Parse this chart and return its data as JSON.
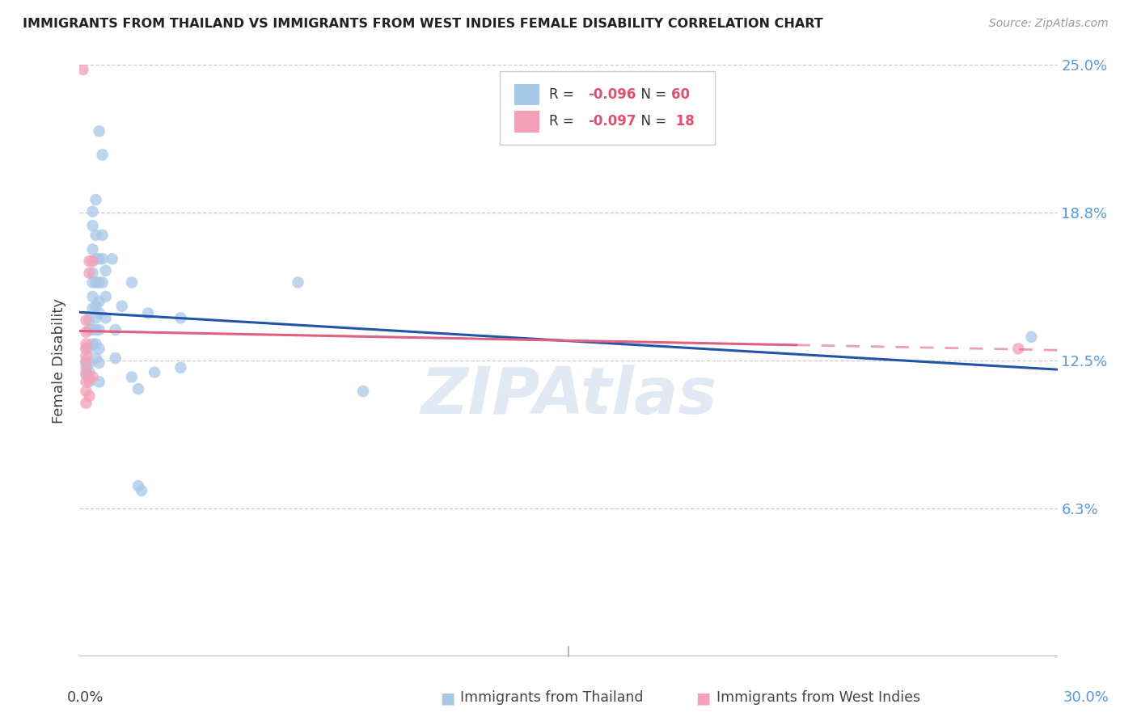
{
  "title": "IMMIGRANTS FROM THAILAND VS IMMIGRANTS FROM WEST INDIES FEMALE DISABILITY CORRELATION CHART",
  "source": "Source: ZipAtlas.com",
  "ylabel": "Female Disability",
  "xlim": [
    0.0,
    0.3
  ],
  "ylim": [
    0.0,
    0.25
  ],
  "yticks": [
    0.0,
    0.0625,
    0.125,
    0.1875,
    0.25
  ],
  "ytick_labels": [
    "",
    "6.3%",
    "12.5%",
    "18.8%",
    "25.0%"
  ],
  "thailand_color": "#a8c8e8",
  "west_indies_color": "#f4a0b8",
  "trendline_thailand_color": "#2255aa",
  "trendline_west_indies_color": "#e06080",
  "watermark": "ZIPAtlas",
  "thailand_points": [
    [
      0.002,
      0.13
    ],
    [
      0.002,
      0.125
    ],
    [
      0.002,
      0.122
    ],
    [
      0.002,
      0.119
    ],
    [
      0.003,
      0.142
    ],
    [
      0.003,
      0.138
    ],
    [
      0.003,
      0.13
    ],
    [
      0.003,
      0.124
    ],
    [
      0.003,
      0.12
    ],
    [
      0.003,
      0.116
    ],
    [
      0.004,
      0.188
    ],
    [
      0.004,
      0.182
    ],
    [
      0.004,
      0.172
    ],
    [
      0.004,
      0.162
    ],
    [
      0.004,
      0.158
    ],
    [
      0.004,
      0.152
    ],
    [
      0.004,
      0.147
    ],
    [
      0.004,
      0.138
    ],
    [
      0.004,
      0.132
    ],
    [
      0.005,
      0.193
    ],
    [
      0.005,
      0.178
    ],
    [
      0.005,
      0.168
    ],
    [
      0.005,
      0.158
    ],
    [
      0.005,
      0.148
    ],
    [
      0.005,
      0.143
    ],
    [
      0.005,
      0.138
    ],
    [
      0.005,
      0.132
    ],
    [
      0.005,
      0.126
    ],
    [
      0.006,
      0.222
    ],
    [
      0.006,
      0.168
    ],
    [
      0.006,
      0.158
    ],
    [
      0.006,
      0.15
    ],
    [
      0.006,
      0.145
    ],
    [
      0.006,
      0.138
    ],
    [
      0.006,
      0.13
    ],
    [
      0.006,
      0.124
    ],
    [
      0.006,
      0.116
    ],
    [
      0.007,
      0.212
    ],
    [
      0.007,
      0.178
    ],
    [
      0.007,
      0.168
    ],
    [
      0.007,
      0.158
    ],
    [
      0.008,
      0.163
    ],
    [
      0.008,
      0.152
    ],
    [
      0.008,
      0.143
    ],
    [
      0.01,
      0.168
    ],
    [
      0.011,
      0.138
    ],
    [
      0.011,
      0.126
    ],
    [
      0.013,
      0.148
    ],
    [
      0.016,
      0.158
    ],
    [
      0.016,
      0.118
    ],
    [
      0.018,
      0.113
    ],
    [
      0.018,
      0.072
    ],
    [
      0.019,
      0.07
    ],
    [
      0.021,
      0.145
    ],
    [
      0.023,
      0.12
    ],
    [
      0.031,
      0.143
    ],
    [
      0.031,
      0.122
    ],
    [
      0.067,
      0.158
    ],
    [
      0.087,
      0.112
    ],
    [
      0.292,
      0.135
    ]
  ],
  "west_indies_points": [
    [
      0.001,
      0.248
    ],
    [
      0.002,
      0.142
    ],
    [
      0.002,
      0.137
    ],
    [
      0.002,
      0.132
    ],
    [
      0.002,
      0.13
    ],
    [
      0.002,
      0.127
    ],
    [
      0.002,
      0.124
    ],
    [
      0.002,
      0.12
    ],
    [
      0.002,
      0.116
    ],
    [
      0.002,
      0.112
    ],
    [
      0.002,
      0.107
    ],
    [
      0.003,
      0.167
    ],
    [
      0.003,
      0.162
    ],
    [
      0.003,
      0.117
    ],
    [
      0.003,
      0.11
    ],
    [
      0.004,
      0.167
    ],
    [
      0.004,
      0.118
    ],
    [
      0.288,
      0.13
    ]
  ],
  "legend_r_thailand": "R = -0.096",
  "legend_n_thailand": "N = 60",
  "legend_r_west_indies": "R = -0.097",
  "legend_n_west_indies": "N =  18"
}
